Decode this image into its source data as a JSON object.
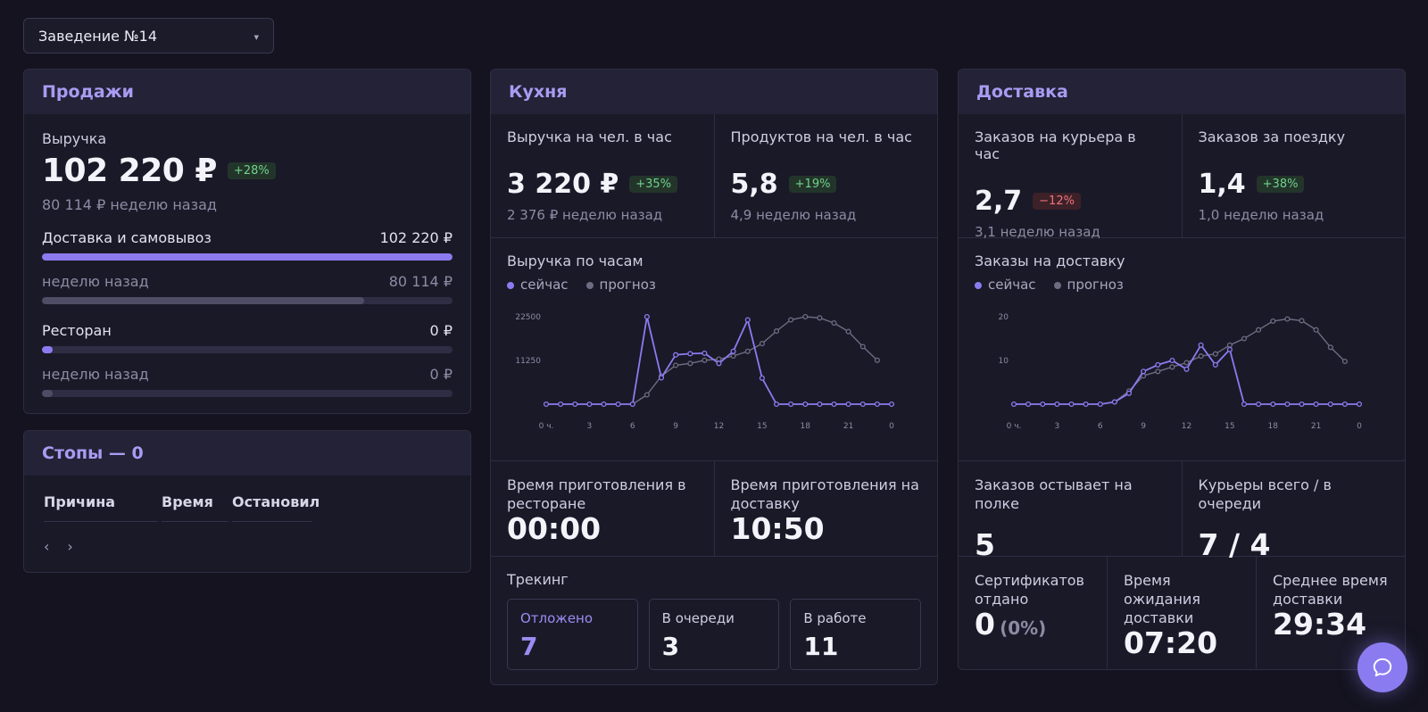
{
  "venue_select": {
    "value": "Заведение №14"
  },
  "colors": {
    "accent": "#8a7cf0",
    "forecast": "#6e6c82",
    "positive": "#6fd28b",
    "negative": "#f0727e"
  },
  "sales": {
    "title": "Продажи",
    "revenue_label": "Выручка",
    "revenue_value": "102 220 ₽",
    "revenue_change": "+28%",
    "revenue_prev": "80 114 ₽ неделю назад",
    "bars": [
      {
        "label": "Доставка и самовывоз",
        "value": "102 220 ₽",
        "fill": 1.0,
        "current": true
      },
      {
        "label": "неделю назад",
        "value": "80 114 ₽",
        "fill": 0.784,
        "current": false
      },
      {
        "label": "Ресторан",
        "value": "0 ₽",
        "fill": 0.0,
        "current": true
      },
      {
        "label": "неделю назад",
        "value": "0 ₽",
        "fill": 0.0,
        "current": false
      }
    ]
  },
  "stops": {
    "title": "Стопы — 0",
    "columns": [
      "Причина",
      "Время",
      "Остановил"
    ],
    "prev": "‹",
    "next": "›"
  },
  "kitchen": {
    "title": "Кухня",
    "metrics": [
      {
        "label": "Выручка на чел. в час",
        "value": "3 220 ₽",
        "change": "+35%",
        "change_type": "pos",
        "prev": "2 376 ₽ неделю назад"
      },
      {
        "label": "Продуктов на чел. в час",
        "value": "5,8",
        "change": "+19%",
        "change_type": "pos",
        "prev": "4,9 неделю назад"
      }
    ],
    "chart_label": "Выручка по часам",
    "legend": [
      "сейчас",
      "прогноз"
    ],
    "times": [
      {
        "label": "Время приготовления в ресторане",
        "value": "00:00"
      },
      {
        "label": "Время приготовления на доставку",
        "value": "10:50"
      }
    ],
    "tracking": {
      "title": "Трекинг",
      "items": [
        {
          "label": "Отложено",
          "value": "7"
        },
        {
          "label": "В очереди",
          "value": "3"
        },
        {
          "label": "В работе",
          "value": "11"
        }
      ]
    }
  },
  "delivery": {
    "title": "Доставка",
    "metrics": [
      {
        "label": "Заказов на курьера в час",
        "value": "2,7",
        "change": "−12%",
        "change_type": "neg",
        "prev": "3,1 неделю назад"
      },
      {
        "label": "Заказов за поездку",
        "value": "1,4",
        "change": "+38%",
        "change_type": "pos",
        "prev": "1,0 неделю назад"
      }
    ],
    "chart_label": "Заказы на доставку",
    "legend": [
      "сейчас",
      "прогноз"
    ],
    "row2": [
      {
        "label": "Заказов остывает на полке",
        "value": "5"
      },
      {
        "label": "Курьеры всего / в очереди",
        "value": "7 / 4"
      }
    ],
    "row3": [
      {
        "label": "Сертификатов отдано",
        "value": "0",
        "extra": "(0%)"
      },
      {
        "label": "Время ожидания доставки",
        "value": "07:20"
      },
      {
        "label": "Среднее время доставки",
        "value": "29:34"
      }
    ]
  },
  "chart_data": [
    {
      "type": "line",
      "xlabel": "",
      "ylabel": "",
      "x_ticks": [
        "0 ч.",
        "3",
        "6",
        "9",
        "12",
        "15",
        "18",
        "21",
        "0"
      ],
      "y_ticks": [
        11250,
        22500
      ],
      "ylim": [
        0,
        22500
      ],
      "x": [
        0,
        1,
        2,
        3,
        4,
        5,
        6,
        7,
        8,
        9,
        10,
        11,
        12,
        13,
        14,
        15,
        16,
        17,
        18,
        19,
        20,
        21,
        22,
        23,
        24
      ],
      "series": [
        {
          "name": "сейчас",
          "values": [
            0,
            0,
            0,
            0,
            0,
            0,
            0,
            22500,
            6800,
            12700,
            13000,
            13100,
            10500,
            13600,
            21700,
            6700,
            0,
            0,
            0,
            0,
            0,
            0,
            0,
            0,
            0
          ]
        },
        {
          "name": "прогноз",
          "values": [
            null,
            null,
            null,
            null,
            null,
            null,
            0,
            2400,
            7200,
            10000,
            10500,
            11300,
            11600,
            12400,
            13600,
            15600,
            18800,
            21700,
            22500,
            22200,
            20900,
            18700,
            14800,
            11300,
            null
          ]
        }
      ]
    },
    {
      "type": "line",
      "xlabel": "",
      "ylabel": "",
      "x_ticks": [
        "0 ч.",
        "3",
        "6",
        "9",
        "12",
        "15",
        "18",
        "21",
        "0"
      ],
      "y_ticks": [
        10,
        20
      ],
      "ylim": [
        0,
        20
      ],
      "x": [
        0,
        1,
        2,
        3,
        4,
        5,
        6,
        7,
        8,
        9,
        10,
        11,
        12,
        13,
        14,
        15,
        16,
        17,
        18,
        19,
        20,
        21,
        22,
        23,
        24
      ],
      "series": [
        {
          "name": "сейчас",
          "values": [
            0,
            0,
            0,
            0,
            0,
            0,
            0,
            0.5,
            2.5,
            7.5,
            9,
            10,
            8,
            13.5,
            9,
            12.5,
            0,
            0,
            0,
            0,
            0,
            0,
            0,
            0,
            0
          ]
        },
        {
          "name": "прогноз",
          "values": [
            null,
            null,
            null,
            null,
            null,
            null,
            null,
            0.5,
            3,
            6.5,
            7.5,
            8.5,
            9.5,
            11,
            11.5,
            13.5,
            15,
            17,
            19,
            19.5,
            19.1,
            17,
            13,
            9.8,
            null
          ]
        }
      ]
    }
  ]
}
